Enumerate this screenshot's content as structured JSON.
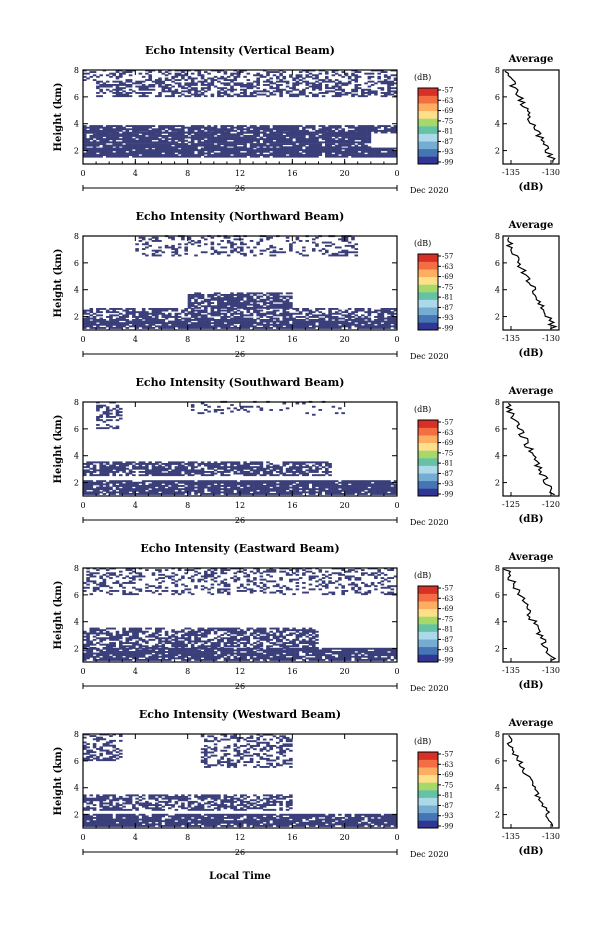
{
  "figure": {
    "xlabel": "Local Time",
    "date_label": "26",
    "month_label": "Dec 2020",
    "colorbar_unit": "(dB)",
    "colorbar_ticks": [
      "-57",
      "-63",
      "-69",
      "-75",
      "-81",
      "-87",
      "-93",
      "-99"
    ],
    "colormap": [
      "#313695",
      "#4575b4",
      "#74add1",
      "#abd9e9",
      "#66c2a5",
      "#a6d96a",
      "#fee08b",
      "#fdae61",
      "#f46d43",
      "#d73027"
    ],
    "echo_color": "#3a3f7a"
  },
  "chart_data": [
    {
      "type": "heatmap",
      "title": "Echo Intensity (Vertical Beam)",
      "ylabel": "Height (km)",
      "xlim": [
        0,
        24
      ],
      "ylim": [
        1,
        8
      ],
      "x_ticks": [
        "0",
        "4",
        "8",
        "12",
        "16",
        "20",
        "0"
      ],
      "y_ticks": [
        "2",
        "4",
        "6",
        "8"
      ],
      "echo_bands": [
        {
          "x": [
            0,
            24
          ],
          "y": [
            1.5,
            2.2
          ],
          "density": 0.9
        },
        {
          "x": [
            0,
            22
          ],
          "y": [
            2.2,
            3.3
          ],
          "density": 0.85
        },
        {
          "x": [
            0,
            24
          ],
          "y": [
            3.3,
            3.8
          ],
          "density": 0.8
        },
        {
          "x": [
            1,
            24
          ],
          "y": [
            6.0,
            7.2
          ],
          "density": 0.55
        },
        {
          "x": [
            0,
            24
          ],
          "y": [
            7.2,
            8.0
          ],
          "density": 0.35
        }
      ],
      "profile": {
        "title": "Average",
        "xlabel": "(dB)",
        "x_ticks": [
          "-135",
          "-130"
        ],
        "xlim": [
          -136,
          -129
        ],
        "y_ticks": [
          "2",
          "4",
          "6",
          "8"
        ],
        "ylim": [
          1,
          8
        ]
      }
    },
    {
      "type": "heatmap",
      "title": "Echo Intensity (Northward Beam)",
      "ylabel": "Height (km)",
      "xlim": [
        0,
        24
      ],
      "ylim": [
        1,
        8
      ],
      "x_ticks": [
        "0",
        "4",
        "8",
        "12",
        "16",
        "20",
        "0"
      ],
      "y_ticks": [
        "2",
        "4",
        "6",
        "8"
      ],
      "echo_bands": [
        {
          "x": [
            0,
            24
          ],
          "y": [
            1.1,
            1.8
          ],
          "density": 0.85
        },
        {
          "x": [
            0,
            24
          ],
          "y": [
            1.8,
            2.6
          ],
          "density": 0.6
        },
        {
          "x": [
            8,
            16
          ],
          "y": [
            2.6,
            3.7
          ],
          "density": 0.75
        },
        {
          "x": [
            4,
            21
          ],
          "y": [
            6.5,
            8.0
          ],
          "density": 0.25
        }
      ],
      "profile": {
        "title": "Average",
        "xlabel": "(dB)",
        "x_ticks": [
          "-135",
          "-130"
        ],
        "xlim": [
          -136,
          -129
        ],
        "y_ticks": [
          "2",
          "4",
          "6",
          "8"
        ],
        "ylim": [
          1,
          8
        ]
      }
    },
    {
      "type": "heatmap",
      "title": "Echo Intensity (Southward Beam)",
      "ylabel": "Height (km)",
      "xlim": [
        0,
        24
      ],
      "ylim": [
        1,
        8
      ],
      "x_ticks": [
        "0",
        "4",
        "8",
        "12",
        "16",
        "20",
        "0"
      ],
      "y_ticks": [
        "2",
        "4",
        "6",
        "8"
      ],
      "echo_bands": [
        {
          "x": [
            0,
            24
          ],
          "y": [
            1.1,
            2.1
          ],
          "density": 0.85
        },
        {
          "x": [
            0,
            19
          ],
          "y": [
            2.5,
            3.5
          ],
          "density": 0.7
        },
        {
          "x": [
            1,
            3
          ],
          "y": [
            6.0,
            8.0
          ],
          "density": 0.4
        },
        {
          "x": [
            8,
            20
          ],
          "y": [
            7.0,
            8.0
          ],
          "density": 0.12
        }
      ],
      "profile": {
        "title": "Average",
        "xlabel": "(dB)",
        "x_ticks": [
          "-125",
          "-120"
        ],
        "xlim": [
          -126,
          -119
        ],
        "y_ticks": [
          "2",
          "4",
          "6",
          "8"
        ],
        "ylim": [
          1,
          8
        ]
      }
    },
    {
      "type": "heatmap",
      "title": "Echo Intensity (Eastward Beam)",
      "ylabel": "Height (km)",
      "xlim": [
        0,
        24
      ],
      "ylim": [
        1,
        8
      ],
      "x_ticks": [
        "0",
        "4",
        "8",
        "12",
        "16",
        "20",
        "0"
      ],
      "y_ticks": [
        "2",
        "4",
        "6",
        "8"
      ],
      "echo_bands": [
        {
          "x": [
            0,
            24
          ],
          "y": [
            1.1,
            2.0
          ],
          "density": 0.85
        },
        {
          "x": [
            0,
            18
          ],
          "y": [
            2.0,
            3.5
          ],
          "density": 0.6
        },
        {
          "x": [
            0,
            24
          ],
          "y": [
            6.0,
            8.0
          ],
          "density": 0.3
        }
      ],
      "profile": {
        "title": "Average",
        "xlabel": "(dB)",
        "x_ticks": [
          "-135",
          "-130"
        ],
        "xlim": [
          -136,
          -129
        ],
        "y_ticks": [
          "2",
          "4",
          "6",
          "8"
        ],
        "ylim": [
          1,
          8
        ]
      }
    },
    {
      "type": "heatmap",
      "title": "Echo Intensity (Westward Beam)",
      "ylabel": "Height (km)",
      "xlim": [
        0,
        24
      ],
      "ylim": [
        1,
        8
      ],
      "x_ticks": [
        "0",
        "4",
        "8",
        "12",
        "16",
        "20",
        "0"
      ],
      "y_ticks": [
        "2",
        "4",
        "6",
        "8"
      ],
      "echo_bands": [
        {
          "x": [
            0,
            24
          ],
          "y": [
            1.1,
            2.0
          ],
          "density": 0.85
        },
        {
          "x": [
            0,
            16
          ],
          "y": [
            2.3,
            3.5
          ],
          "density": 0.6
        },
        {
          "x": [
            0,
            3
          ],
          "y": [
            6.0,
            8.0
          ],
          "density": 0.45
        },
        {
          "x": [
            9,
            16
          ],
          "y": [
            5.5,
            8.0
          ],
          "density": 0.35
        }
      ],
      "profile": {
        "title": "Average",
        "xlabel": "(dB)",
        "x_ticks": [
          "-135",
          "-130"
        ],
        "xlim": [
          -136,
          -129
        ],
        "y_ticks": [
          "2",
          "4",
          "6",
          "8"
        ],
        "ylim": [
          1,
          8
        ]
      }
    }
  ]
}
